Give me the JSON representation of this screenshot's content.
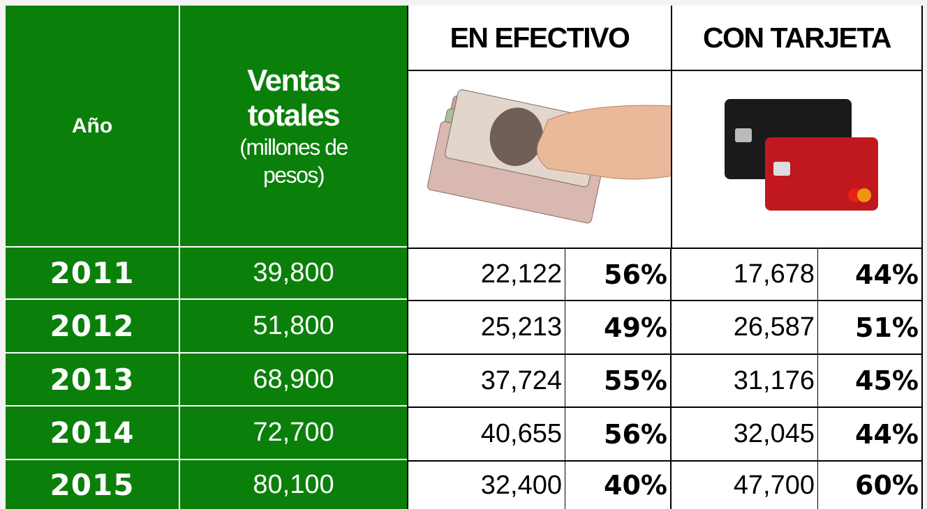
{
  "header": {
    "year": "Año",
    "sales_title": "Ventas totales",
    "sales_unit": "(millones de pesos)",
    "cash": "EN EFECTIVO",
    "card": "CON TARJETA"
  },
  "table": {
    "rows": [
      [
        "2011",
        "39,800",
        "22,122",
        "56%",
        "17,678",
        "44%"
      ],
      [
        "2012",
        "51,800",
        "25,213",
        "49%",
        "26,587",
        "51%"
      ],
      [
        "2013",
        "68,900",
        "37,724",
        "55%",
        "31,176",
        "45%"
      ],
      [
        "2014",
        "72,700",
        "40,655",
        "56%",
        "32,045",
        "44%"
      ],
      [
        "2015",
        "80,100",
        "32,400",
        "40%",
        "47,700",
        "60%"
      ]
    ]
  }
}
